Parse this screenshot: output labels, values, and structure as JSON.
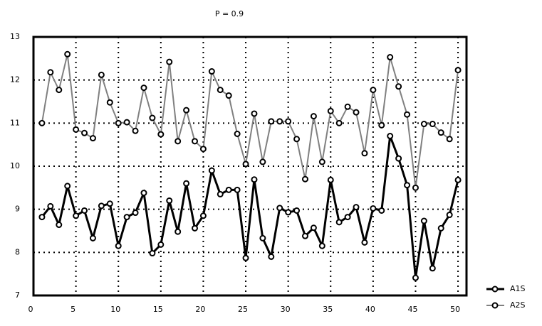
{
  "chart_data": {
    "type": "line",
    "title": "P = 0.9",
    "x": [
      1,
      2,
      3,
      4,
      5,
      6,
      7,
      8,
      9,
      10,
      11,
      12,
      13,
      14,
      15,
      16,
      17,
      18,
      19,
      20,
      21,
      22,
      23,
      24,
      25,
      26,
      27,
      28,
      29,
      30,
      31,
      32,
      33,
      34,
      35,
      36,
      37,
      38,
      39,
      40,
      41,
      42,
      43,
      44,
      45,
      46,
      47,
      48,
      49,
      50
    ],
    "series": [
      {
        "name": "A1S",
        "color": "#000000",
        "values": [
          8.82,
          9.07,
          8.64,
          9.54,
          8.85,
          8.97,
          8.33,
          9.08,
          9.13,
          8.15,
          8.82,
          8.92,
          9.38,
          7.98,
          8.18,
          9.2,
          8.48,
          9.6,
          8.56,
          8.85,
          9.9,
          9.35,
          9.45,
          9.45,
          7.87,
          9.69,
          8.33,
          7.9,
          9.03,
          8.93,
          8.97,
          8.38,
          8.57,
          8.15,
          9.68,
          8.7,
          8.82,
          9.05,
          8.23,
          9.02,
          8.97,
          10.7,
          10.18,
          9.56,
          7.41,
          8.73,
          7.63,
          8.56,
          8.87,
          9.68
        ]
      },
      {
        "name": "A2S",
        "color": "#808080",
        "values": [
          11.0,
          12.18,
          11.77,
          12.6,
          10.85,
          10.77,
          10.65,
          12.12,
          11.48,
          11.0,
          11.02,
          10.82,
          11.82,
          11.12,
          10.74,
          12.42,
          10.58,
          11.3,
          10.58,
          10.4,
          12.2,
          11.77,
          11.64,
          10.75,
          10.05,
          11.22,
          10.1,
          11.04,
          11.04,
          11.04,
          10.63,
          9.7,
          11.16,
          10.1,
          11.28,
          11.0,
          11.38,
          11.25,
          10.3,
          11.77,
          10.95,
          12.53,
          11.85,
          11.2,
          9.5,
          10.98,
          10.98,
          10.78,
          10.63,
          12.23
        ]
      }
    ],
    "xlim": [
      0,
      51
    ],
    "xticks": [
      0,
      5,
      10,
      15,
      20,
      25,
      30,
      35,
      40,
      45,
      50
    ],
    "ylim": [
      7,
      13
    ],
    "yticks": [
      7,
      8,
      9,
      10,
      11,
      12,
      13
    ],
    "grid": true,
    "legend": "right"
  }
}
